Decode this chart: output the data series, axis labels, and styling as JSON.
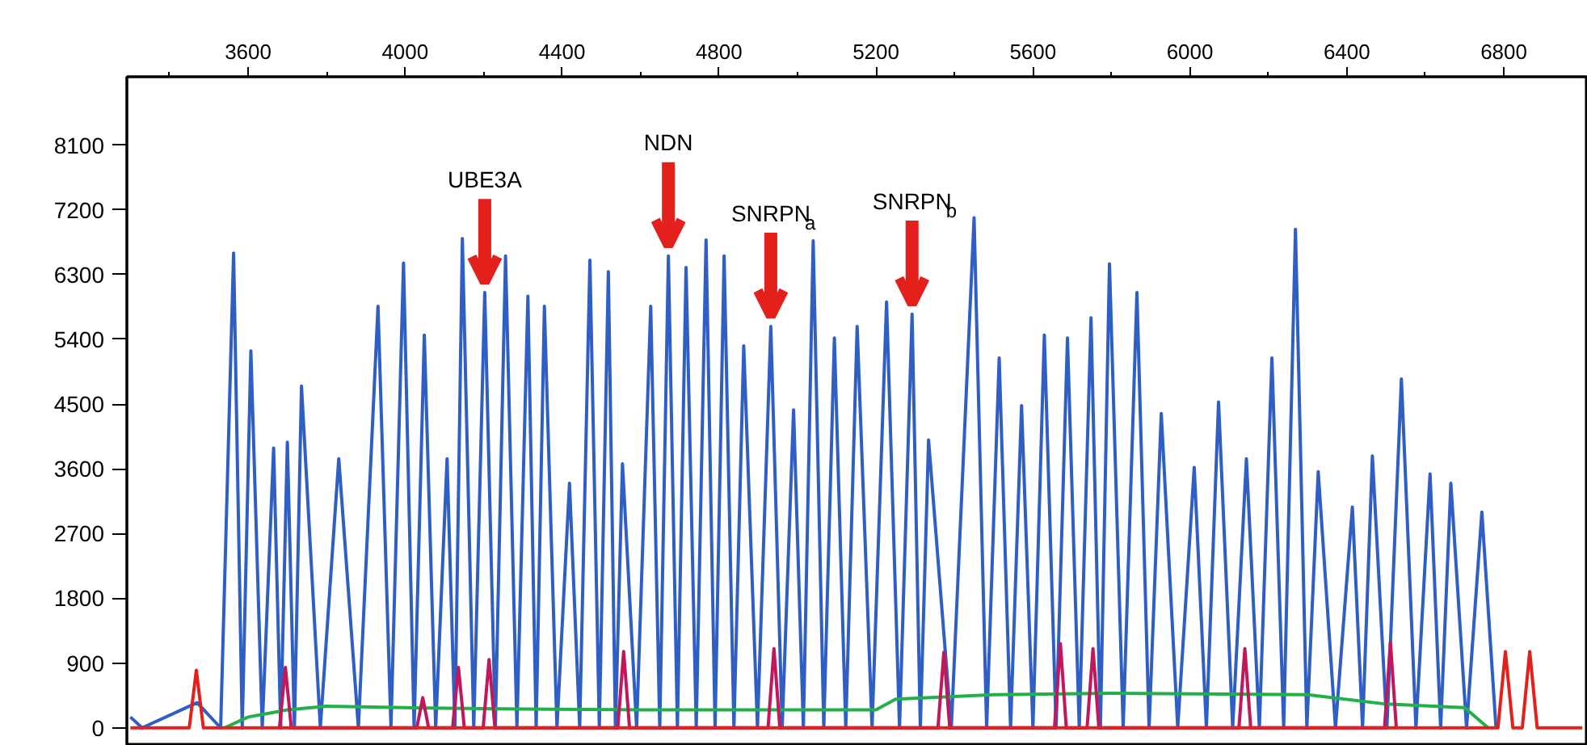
{
  "chart_data": {
    "type": "line",
    "xlim": [
      3291,
      7014
    ],
    "ylim": [
      -250,
      9050
    ],
    "xticks": [
      3600,
      4000,
      4400,
      4800,
      5200,
      5600,
      6000,
      6400,
      6800
    ],
    "yticks": [
      0,
      900,
      1800,
      2700,
      3600,
      4500,
      5400,
      6300,
      7200,
      8100
    ],
    "grid": false,
    "marker": "none",
    "line_style": "solid",
    "series": [
      {
        "color": "#2f5fc4",
        "x": [
          3300,
          3330,
          3470,
          3530,
          3563,
          3585,
          3607,
          3636,
          3665,
          3683,
          3700,
          3718,
          3736,
          3784,
          3831,
          3881,
          3931,
          3964,
          3996,
          4023,
          4049,
          4078,
          4107,
          4127,
          4146,
          4175,
          4203,
          4230,
          4256,
          4285,
          4313,
          4334,
          4355,
          4387,
          4419,
          4445,
          4471,
          4495,
          4518,
          4536,
          4554,
          4590,
          4626,
          4649,
          4671,
          4694,
          4716,
          4742,
          4767,
          4790,
          4813,
          4838,
          4863,
          4898,
          4932,
          4961,
          4990,
          5015,
          5040,
          5067,
          5094,
          5123,
          5152,
          5190,
          5227,
          5260,
          5292,
          5313,
          5334,
          5392,
          5450,
          5482,
          5514,
          5543,
          5571,
          5600,
          5629,
          5659,
          5688,
          5718,
          5748,
          5772,
          5795,
          5830,
          5865,
          5896,
          5927,
          5969,
          6011,
          6042,
          6073,
          6109,
          6144,
          6177,
          6209,
          6239,
          6269,
          6298,
          6327,
          6371,
          6414,
          6440,
          6465,
          6502,
          6539,
          6576,
          6612,
          6639,
          6665,
          6705,
          6744,
          6780
        ],
        "values": [
          150,
          0,
          350,
          0,
          6600,
          0,
          5240,
          0,
          3890,
          0,
          3970,
          0,
          4750,
          0,
          3740,
          0,
          5860,
          0,
          6460,
          0,
          5460,
          0,
          3740,
          0,
          6800,
          0,
          6050,
          0,
          6560,
          0,
          6000,
          0,
          5860,
          0,
          3400,
          0,
          6500,
          0,
          6340,
          0,
          3670,
          0,
          5860,
          0,
          6560,
          0,
          6400,
          0,
          6780,
          0,
          6560,
          0,
          5310,
          0,
          5580,
          0,
          4420,
          0,
          6770,
          0,
          5420,
          0,
          5580,
          0,
          5920,
          0,
          5750,
          0,
          4000,
          0,
          7090,
          0,
          5140,
          0,
          4480,
          0,
          5460,
          0,
          5420,
          0,
          5700,
          0,
          6450,
          0,
          6050,
          0,
          4370,
          0,
          3620,
          0,
          4530,
          0,
          3740,
          0,
          5140,
          0,
          6930,
          0,
          3560,
          0,
          3070,
          0,
          3780,
          0,
          4850,
          0,
          3530,
          0,
          3400,
          0,
          3000,
          0
        ]
      },
      {
        "color": "#22b04a",
        "x": [
          3540,
          3600,
          3700,
          3800,
          4000,
          4300,
          4600,
          4900,
          5200,
          5250,
          5500,
          5800,
          6100,
          6300,
          6500,
          6700,
          6760
        ],
        "values": [
          0,
          150,
          250,
          300,
          280,
          260,
          250,
          250,
          250,
          400,
          460,
          480,
          470,
          460,
          330,
          280,
          0
        ]
      },
      {
        "color": "#c2185b",
        "x": [
          3680,
          3695,
          3710,
          4030,
          4045,
          4060,
          4121,
          4136,
          4151,
          4199,
          4214,
          4229,
          4542,
          4557,
          4572,
          4925,
          4940,
          4955,
          5358,
          5373,
          5388,
          5655,
          5670,
          5685,
          5738,
          5753,
          5768,
          6125,
          6140,
          6155,
          6496,
          6511,
          6526
        ],
        "values": [
          0,
          840,
          0,
          0,
          420,
          0,
          0,
          840,
          0,
          0,
          950,
          0,
          0,
          1060,
          0,
          0,
          1100,
          0,
          0,
          1050,
          0,
          0,
          1170,
          0,
          0,
          1100,
          0,
          0,
          1100,
          0,
          0,
          1190,
          0
        ]
      },
      {
        "color": "#e3201c",
        "x": [
          3300,
          3450,
          3468,
          3486,
          6785,
          6804,
          6823,
          6847,
          6866,
          6885,
          7000
        ],
        "values": [
          0,
          0,
          800,
          0,
          0,
          1060,
          0,
          0,
          1060,
          0,
          0
        ]
      }
    ],
    "annotations": [
      {
        "text": "UBE3A",
        "x": 4203,
        "y": 6050
      },
      {
        "text": "NDN",
        "x": 4671,
        "y": 6560
      },
      {
        "text": "SNRPN$_{a}$",
        "x": 4932,
        "y": 5580
      },
      {
        "text": "SNRPN$_{b}$",
        "x": 5292,
        "y": 5750
      }
    ]
  }
}
